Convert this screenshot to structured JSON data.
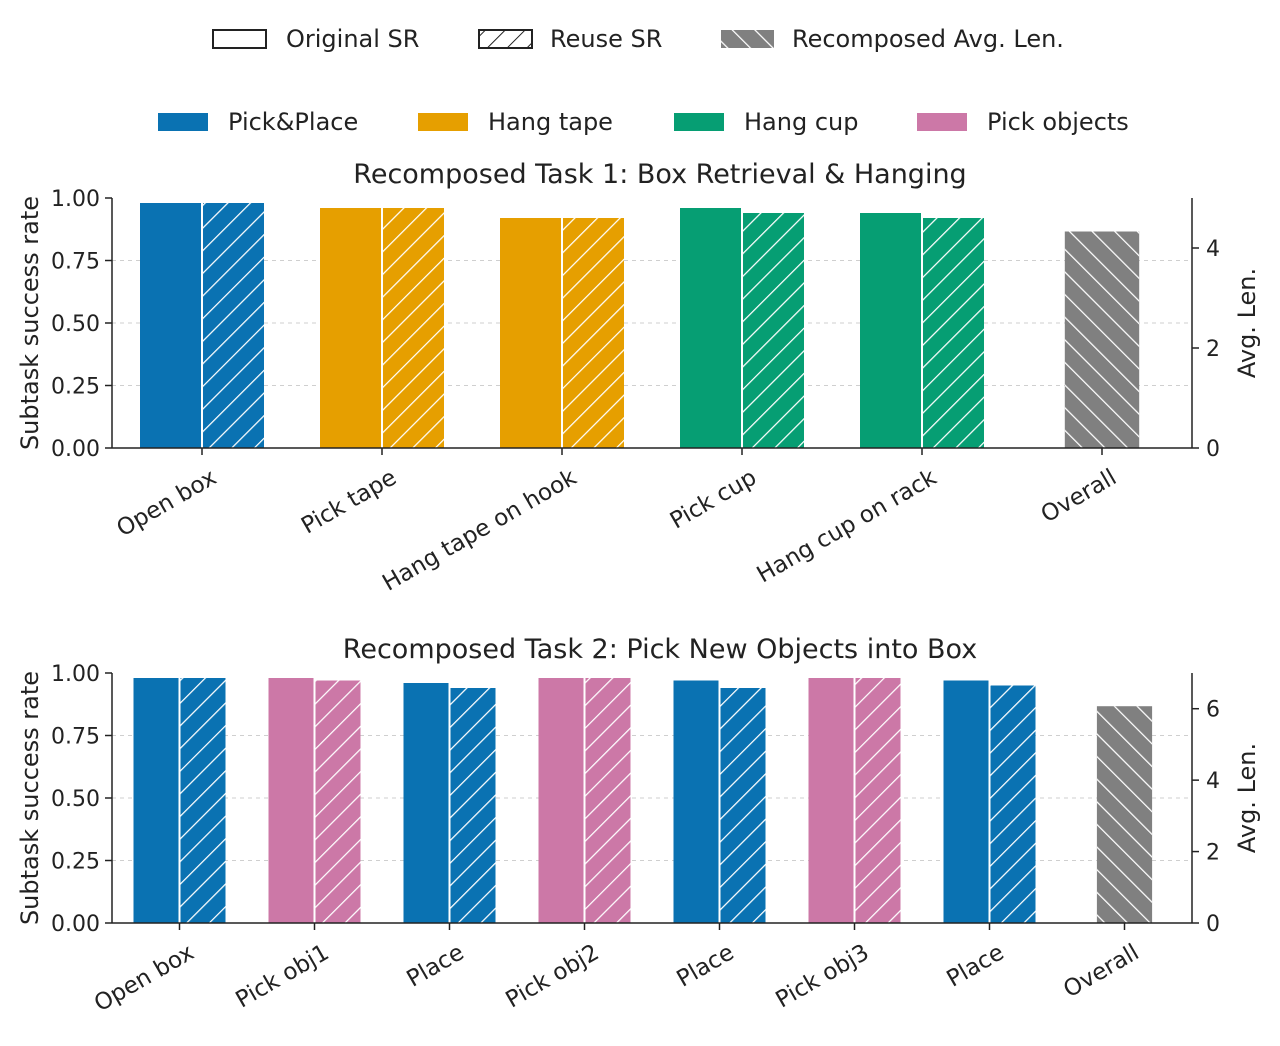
{
  "legend_top": [
    {
      "label": "Original SR",
      "style": "outline"
    },
    {
      "label": "Reuse SR",
      "style": "hatch-outline"
    },
    {
      "label": "Recomposed Avg. Len.",
      "style": "hatch-gray"
    }
  ],
  "legend_colors": [
    {
      "label": "Pick&Place",
      "color": "#0a72b2"
    },
    {
      "label": "Hang tape",
      "color": "#e69f00"
    },
    {
      "label": "Hang cup",
      "color": "#069e73"
    },
    {
      "label": "Pick objects",
      "color": "#cc78a7"
    }
  ],
  "chart_data": [
    {
      "type": "bar",
      "title": "Recomposed Task 1: Box Retrieval & Hanging",
      "ylabel": "Subtask success rate",
      "y2label": "Avg. Len.",
      "ylim": [
        0,
        1
      ],
      "yticks": [
        "0.00",
        "0.25",
        "0.50",
        "0.75",
        "1.00"
      ],
      "y2lim": [
        0,
        5
      ],
      "y2ticks": [
        "0",
        "2",
        "4"
      ],
      "grid": true,
      "categories": [
        "Open box",
        "Pick tape",
        "Hang tape on hook",
        "Pick cup",
        "Hang cup on rack",
        "Overall"
      ],
      "series": [
        {
          "name": "Original SR",
          "values": [
            0.98,
            0.96,
            0.92,
            0.96,
            0.94,
            null
          ]
        },
        {
          "name": "Reuse SR",
          "values": [
            0.98,
            0.96,
            0.92,
            0.94,
            0.92,
            null
          ]
        }
      ],
      "bar_colors": [
        "#0a72b2",
        "#e69f00",
        "#e69f00",
        "#069e73",
        "#069e73"
      ],
      "avg_len": 4.33,
      "avg_len_color": "#808080"
    },
    {
      "type": "bar",
      "title": "Recomposed Task 2: Pick New Objects into Box",
      "ylabel": "Subtask success rate",
      "y2label": "Avg. Len.",
      "ylim": [
        0,
        1
      ],
      "yticks": [
        "0.00",
        "0.25",
        "0.50",
        "0.75",
        "1.00"
      ],
      "y2lim": [
        0,
        7
      ],
      "y2ticks": [
        "0",
        "2",
        "4",
        "6"
      ],
      "grid": true,
      "categories": [
        "Open box",
        "Pick obj1",
        "Place",
        "Pick obj2",
        "Place",
        "Pick obj3",
        "Place",
        "Overall"
      ],
      "series": [
        {
          "name": "Original SR",
          "values": [
            0.98,
            0.98,
            0.96,
            0.98,
            0.97,
            0.98,
            0.97,
            null
          ]
        },
        {
          "name": "Reuse SR",
          "values": [
            0.98,
            0.97,
            0.94,
            0.98,
            0.94,
            0.98,
            0.95,
            null
          ]
        }
      ],
      "bar_colors": [
        "#0a72b2",
        "#cc78a7",
        "#0a72b2",
        "#cc78a7",
        "#0a72b2",
        "#cc78a7",
        "#0a72b2"
      ],
      "avg_len": 6.07,
      "avg_len_color": "#808080"
    }
  ]
}
